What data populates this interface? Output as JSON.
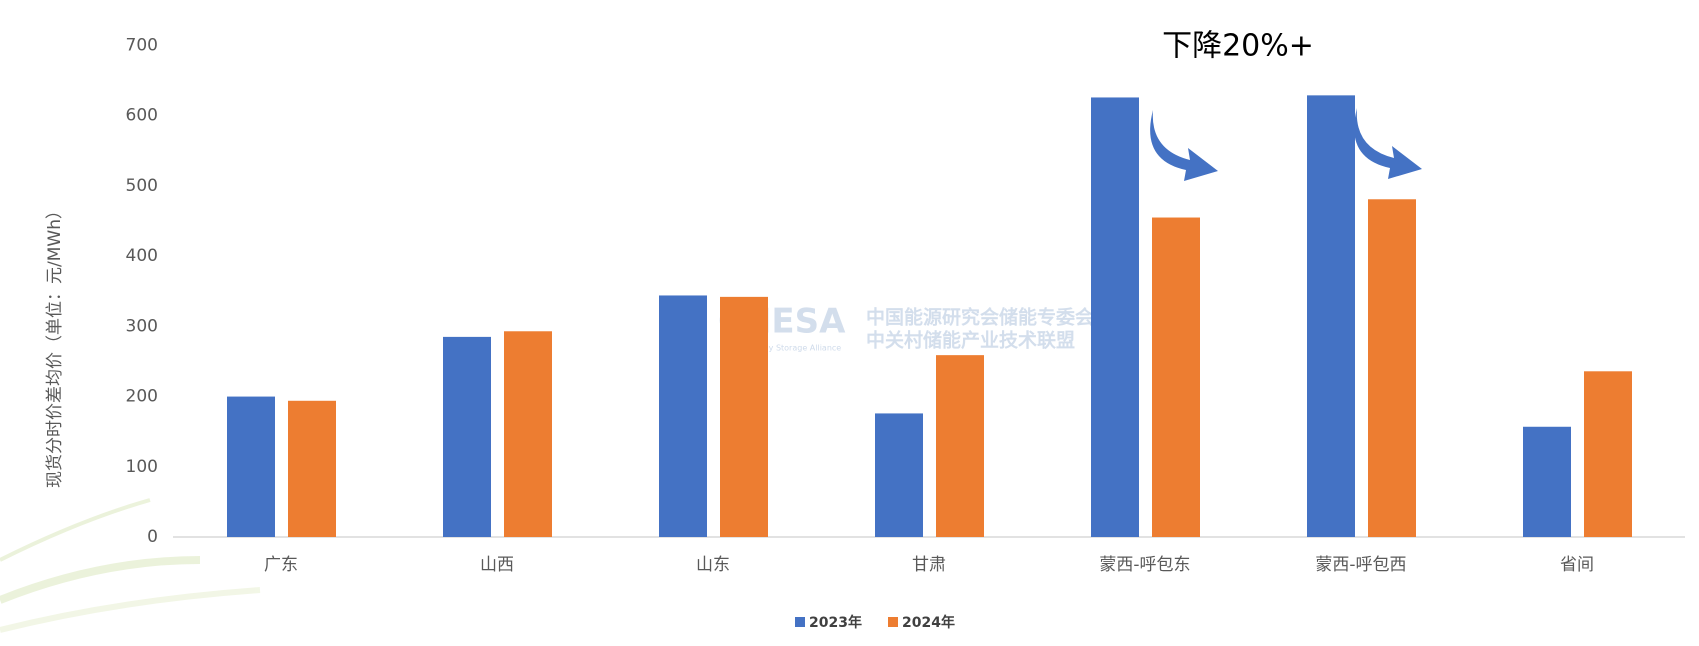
{
  "chart_data": {
    "type": "bar",
    "y_label": "现货分时价差均价（单位：元/MWh）",
    "annotation": "下降20%+",
    "watermark": {
      "logo": "CNESA",
      "tagline": "China Energy Storage Alliance",
      "line1": "中国能源研究会储能专委会",
      "line2": "中关村储能产业技术联盟"
    },
    "categories": [
      "广东",
      "山西",
      "山东",
      "甘肃",
      "蒙西-呼包东",
      "蒙西-呼包西",
      "省间"
    ],
    "series": [
      {
        "name": "2023年",
        "color": "#4472c4",
        "values": [
          200,
          285,
          344,
          176,
          626,
          629,
          157
        ]
      },
      {
        "name": "2024年",
        "color": "#ed7d31",
        "values": [
          194,
          293,
          342,
          259,
          455,
          481,
          236
        ]
      }
    ],
    "ylim": [
      0,
      700
    ],
    "yticks": [
      0,
      100,
      200,
      300,
      400,
      500,
      600,
      700
    ],
    "grid": false
  }
}
